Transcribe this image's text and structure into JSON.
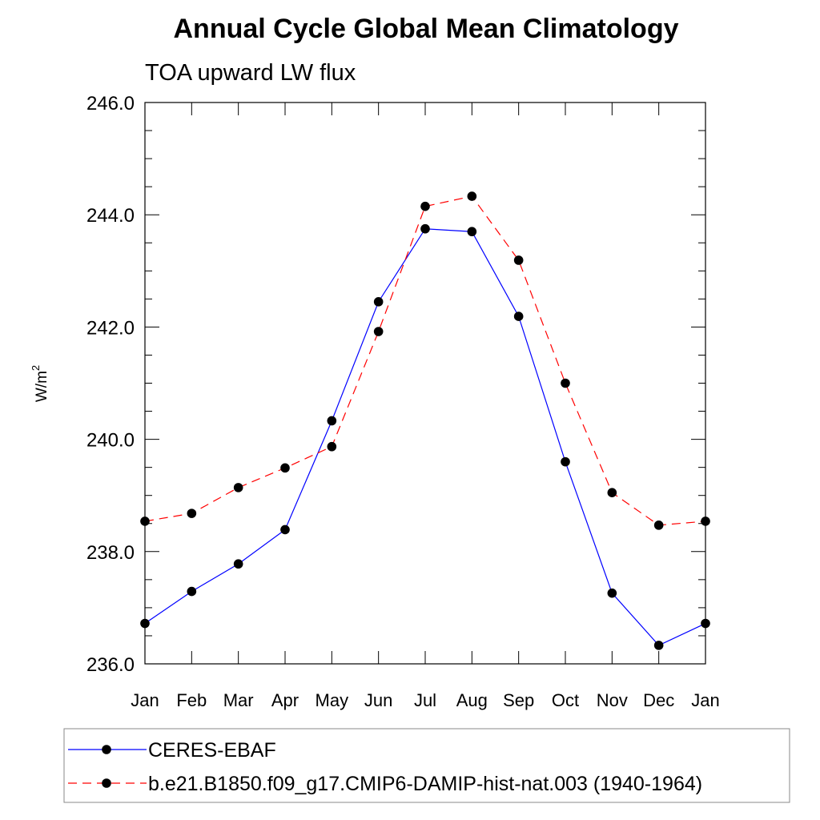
{
  "chart_data": {
    "type": "line",
    "title": "Annual Cycle Global Mean Climatology",
    "subtitle": "TOA upward LW flux",
    "ylabel": "W/m",
    "ylabel_superscript": "2",
    "ylim": [
      236.0,
      246.0
    ],
    "yticks": [
      "236.0",
      "238.0",
      "240.0",
      "242.0",
      "244.0",
      "246.0"
    ],
    "ytick_values": [
      236,
      238,
      240,
      242,
      244,
      246
    ],
    "categories": [
      "Jan",
      "Feb",
      "Mar",
      "Apr",
      "May",
      "Jun",
      "Jul",
      "Aug",
      "Sep",
      "Oct",
      "Nov",
      "Dec",
      "Jan"
    ],
    "series": [
      {
        "name": "CERES-EBAF",
        "color": "#0000ff",
        "line_style": "solid",
        "marker": "filled-circle",
        "values": [
          236.72,
          237.29,
          237.78,
          238.39,
          240.33,
          242.45,
          243.75,
          243.7,
          242.19,
          239.6,
          237.26,
          236.33,
          236.72
        ]
      },
      {
        "name": "b.e21.B1850.f09_g17.CMIP6-DAMIP-hist-nat.003 (1940-1964)",
        "color": "#ff0000",
        "line_style": "dashed",
        "marker": "filled-circle",
        "values": [
          238.54,
          238.68,
          239.14,
          239.49,
          239.87,
          241.92,
          244.15,
          244.33,
          243.19,
          241.0,
          239.05,
          238.47,
          238.54
        ]
      }
    ],
    "grid": false,
    "legend_position": "bottom"
  }
}
